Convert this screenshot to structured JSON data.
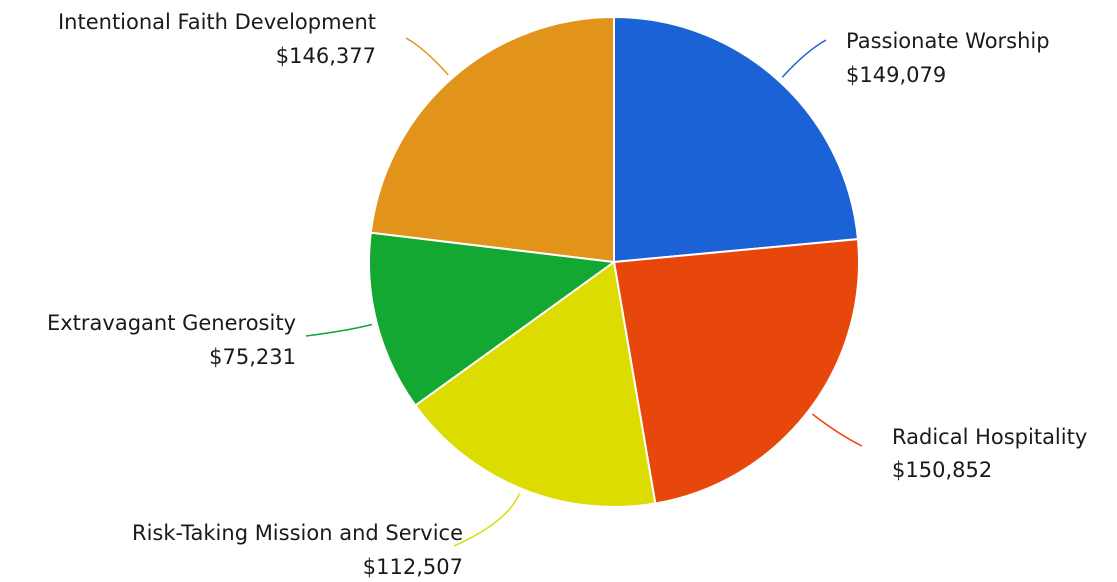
{
  "chart_data": {
    "type": "pie",
    "title": "",
    "slices": [
      {
        "label": "Passionate Worship",
        "value": 149079,
        "value_label": "$149,079",
        "color": "#1a62d6"
      },
      {
        "label": "Radical Hospitality",
        "value": 150852,
        "value_label": "$150,852",
        "color": "#e8470b"
      },
      {
        "label": "Risk-Taking Mission and Service",
        "value": 112507,
        "value_label": "$112,507",
        "color": "#dcdc00"
      },
      {
        "label": "Extravagant Generosity",
        "value": 75231,
        "value_label": "$75,231",
        "color": "#12a832"
      },
      {
        "label": "Intentional Faith Development",
        "value": 146377,
        "value_label": "$146,377",
        "color": "#e2931a"
      }
    ],
    "start_angle": "12 o'clock",
    "direction": "clockwise",
    "labels": "outside with leader lines",
    "legend": "none"
  }
}
